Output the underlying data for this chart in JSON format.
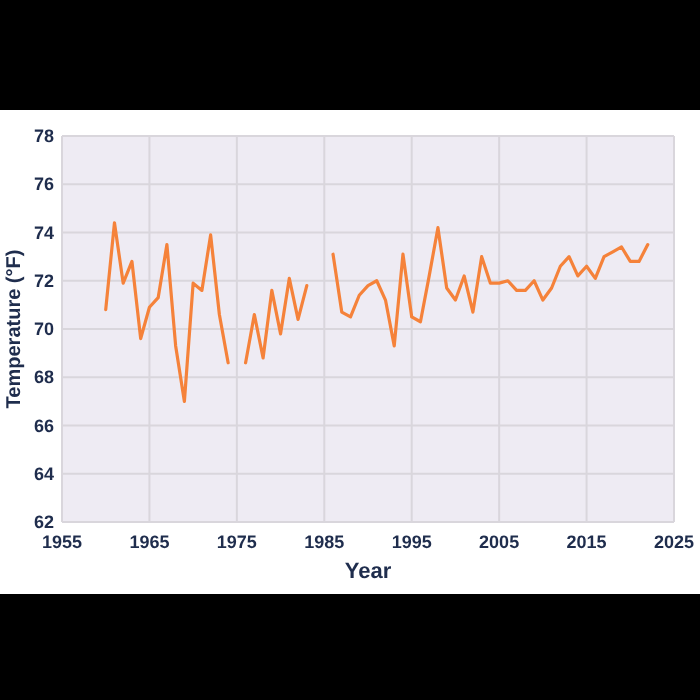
{
  "chart_data": {
    "type": "line",
    "xlabel": "Year",
    "ylabel": "Temperature (°F)",
    "x": [
      1960,
      1961,
      1962,
      1963,
      1964,
      1965,
      1966,
      1967,
      1968,
      1969,
      1970,
      1971,
      1972,
      1973,
      1974,
      1975,
      1976,
      1977,
      1978,
      1979,
      1980,
      1981,
      1982,
      1983,
      1984,
      1985,
      1986,
      1987,
      1988,
      1989,
      1990,
      1991,
      1992,
      1993,
      1994,
      1995,
      1996,
      1997,
      1998,
      1999,
      2000,
      2001,
      2002,
      2003,
      2004,
      2005,
      2006,
      2007,
      2008,
      2009,
      2010,
      2011,
      2012,
      2013,
      2014,
      2015,
      2016,
      2017,
      2018,
      2019,
      2020,
      2021,
      2022
    ],
    "series": [
      {
        "color": "#f5823a",
        "values": [
          70.8,
          74.4,
          71.9,
          72.8,
          69.6,
          70.9,
          71.3,
          73.5,
          69.3,
          67.0,
          71.9,
          71.6,
          73.9,
          70.6,
          68.6,
          null,
          68.6,
          70.6,
          68.8,
          71.6,
          69.8,
          72.1,
          70.4,
          71.8,
          null,
          null,
          73.1,
          70.7,
          70.5,
          71.4,
          71.8,
          72.0,
          71.2,
          69.3,
          73.1,
          70.5,
          70.3,
          72.2,
          74.2,
          71.7,
          71.2,
          72.2,
          70.7,
          73.0,
          71.9,
          71.9,
          72.0,
          71.6,
          71.6,
          72.0,
          71.2,
          71.7,
          72.6,
          73.0,
          72.2,
          72.6,
          72.1,
          73.0,
          73.2,
          73.4,
          72.8,
          72.8,
          73.5
        ]
      }
    ],
    "xlim": [
      1955,
      2025
    ],
    "xticks": [
      1955,
      1965,
      1975,
      1985,
      1995,
      2005,
      2015,
      2025
    ],
    "ylim": [
      62,
      78
    ],
    "yticks": [
      62,
      64,
      66,
      68,
      70,
      72,
      74,
      76,
      78
    ],
    "grid": true,
    "line_style": "solid",
    "marker": "none"
  }
}
